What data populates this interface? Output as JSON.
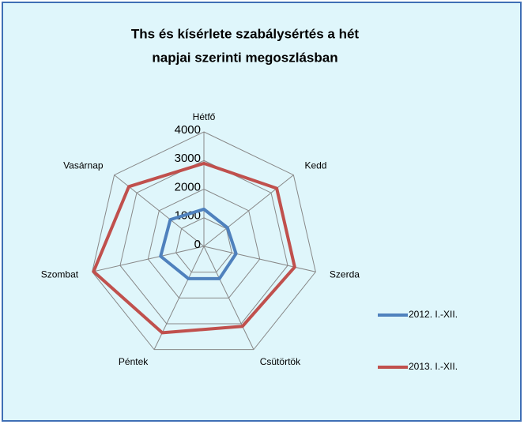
{
  "chart_data": {
    "type": "radar",
    "title": "Ths és kísérlete szabálysértés a hét napjai szerinti megoszlásban",
    "categories": [
      "Hétfő",
      "Kedd",
      "Szerda",
      "Csütörtök",
      "Péntek",
      "Szombat",
      "Vasárnap"
    ],
    "series": [
      {
        "name": "2012. I.-XII.",
        "color": "#4f81bd",
        "values": [
          1300,
          1050,
          1150,
          1250,
          1250,
          1550,
          1500
        ]
      },
      {
        "name": "2013. I.-XII.",
        "color": "#c0504d",
        "values": [
          2900,
          3250,
          3250,
          3100,
          3350,
          3950,
          3350
        ]
      }
    ],
    "ylim": [
      0,
      4000
    ],
    "yticks": [
      0,
      1000,
      2000,
      3000,
      4000
    ],
    "grid": true,
    "legend": "right"
  }
}
